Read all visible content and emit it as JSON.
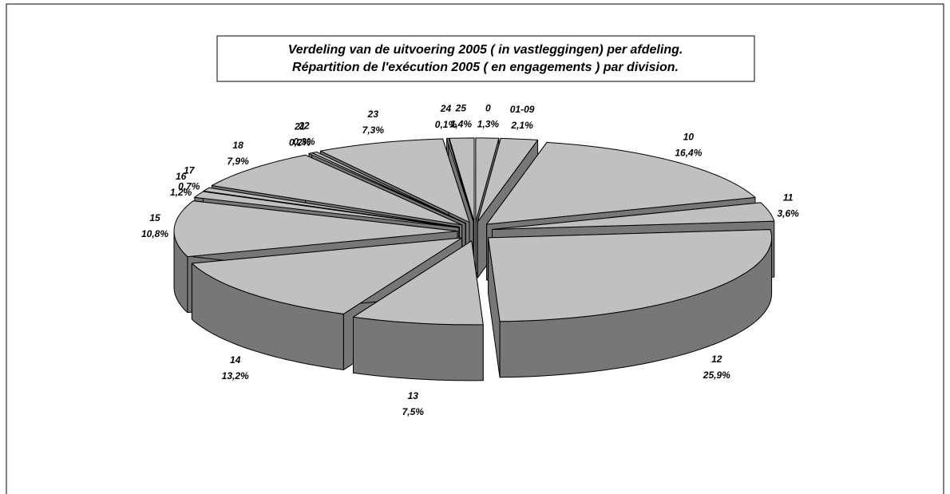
{
  "chart_data": {
    "type": "pie3d",
    "title": "Verdeling van de uitvoering 2005 ( in vastleggingen) per afdeling.",
    "subtitle": "Répartition de l'exécution 2005 ( en engagements ) par division.",
    "categories": [
      "0",
      "01-09",
      "10",
      "11",
      "12",
      "13",
      "14",
      "15",
      "16",
      "17",
      "18",
      "21",
      "22",
      "23",
      "24",
      "25"
    ],
    "values": [
      1.3,
      2.1,
      16.4,
      3.6,
      25.9,
      7.5,
      13.2,
      10.8,
      1.2,
      0.7,
      7.9,
      0.2,
      0.3,
      7.3,
      0.1,
      1.4
    ],
    "value_labels": [
      "1,3%",
      "2,1%",
      "16,4%",
      "3,6%",
      "25,9%",
      "7,5%",
      "13,2%",
      "10,8%",
      "1,2%",
      "0,7%",
      "7,9%",
      "0,2%",
      "0,3%",
      "7,3%",
      "0,1%",
      "1,4%"
    ],
    "color": "#c0c0c0",
    "side_color": "#777777"
  }
}
